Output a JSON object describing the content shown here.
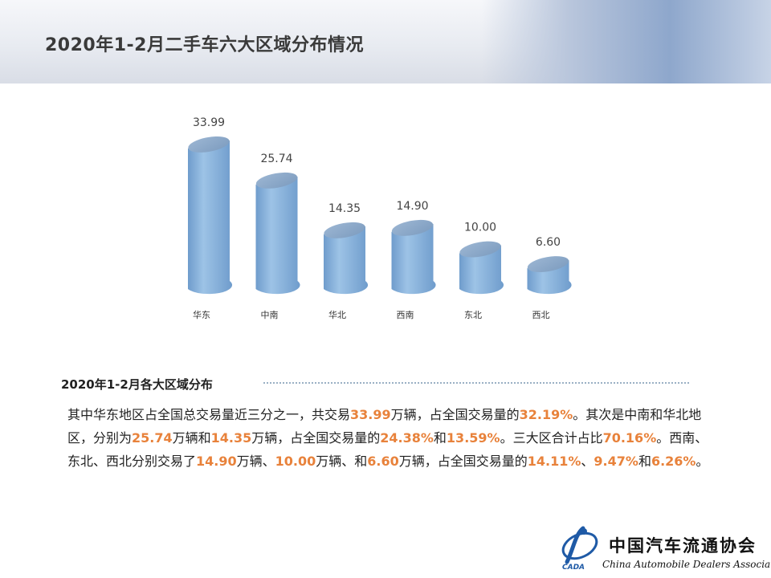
{
  "header": {
    "title": "2020年1-2月二手车六大区域分布情况"
  },
  "chart_data": {
    "type": "bar",
    "title": "",
    "categories": [
      "华东",
      "中南",
      "华北",
      "西南",
      "东北",
      "西北"
    ],
    "values": [
      33.99,
      25.74,
      14.35,
      14.9,
      10.0,
      6.6
    ],
    "value_labels": [
      "33.99",
      "25.74",
      "14.35",
      "14.90",
      "10.00",
      "6.60"
    ],
    "xlabel": "",
    "ylabel": "",
    "ylim": [
      0,
      36
    ],
    "grid": false,
    "legend": "none",
    "bar_color": "#9dc3e6",
    "bar_color_dark": "#6f9ccc",
    "top_color": "#7d9cbf"
  },
  "section": {
    "title": "2020年1-2月各大区域分布"
  },
  "paragraph": {
    "segments": [
      {
        "text": "其中华东地区占全国总交易量近三分之一，共交易",
        "hl": false
      },
      {
        "text": "33.99",
        "hl": true
      },
      {
        "text": "万辆，占全国交易量的",
        "hl": false
      },
      {
        "text": "32.19%",
        "hl": true
      },
      {
        "text": "。其次是中南和华北地区，分别为",
        "hl": false
      },
      {
        "text": "25.74",
        "hl": true
      },
      {
        "text": "万辆和",
        "hl": false
      },
      {
        "text": "14.35",
        "hl": true
      },
      {
        "text": "万辆，占全国交易量的",
        "hl": false
      },
      {
        "text": "24.38%",
        "hl": true
      },
      {
        "text": "和",
        "hl": false
      },
      {
        "text": "13.59%",
        "hl": true
      },
      {
        "text": "。三大区合计占比",
        "hl": false
      },
      {
        "text": "70.16%",
        "hl": true
      },
      {
        "text": "。西南、东北、西北分别交易了",
        "hl": false
      },
      {
        "text": "14.90",
        "hl": true
      },
      {
        "text": "万辆、",
        "hl": false
      },
      {
        "text": "10.00",
        "hl": true
      },
      {
        "text": "万辆、和",
        "hl": false
      },
      {
        "text": "6.60",
        "hl": true
      },
      {
        "text": "万辆，占全国交易量的",
        "hl": false
      },
      {
        "text": "14.11%",
        "hl": true
      },
      {
        "text": "、",
        "hl": false
      },
      {
        "text": "9.47%",
        "hl": true
      },
      {
        "text": "和",
        "hl": false
      },
      {
        "text": "6.26%",
        "hl": true
      },
      {
        "text": "。",
        "hl": false
      }
    ]
  },
  "logo": {
    "cn_name": "中国汽车流通协会",
    "en_name": "China Automobile Dealers Association",
    "abbr": "CADA"
  },
  "colors": {
    "accent": "#e8823b",
    "title_text": "#3a3a3a"
  }
}
